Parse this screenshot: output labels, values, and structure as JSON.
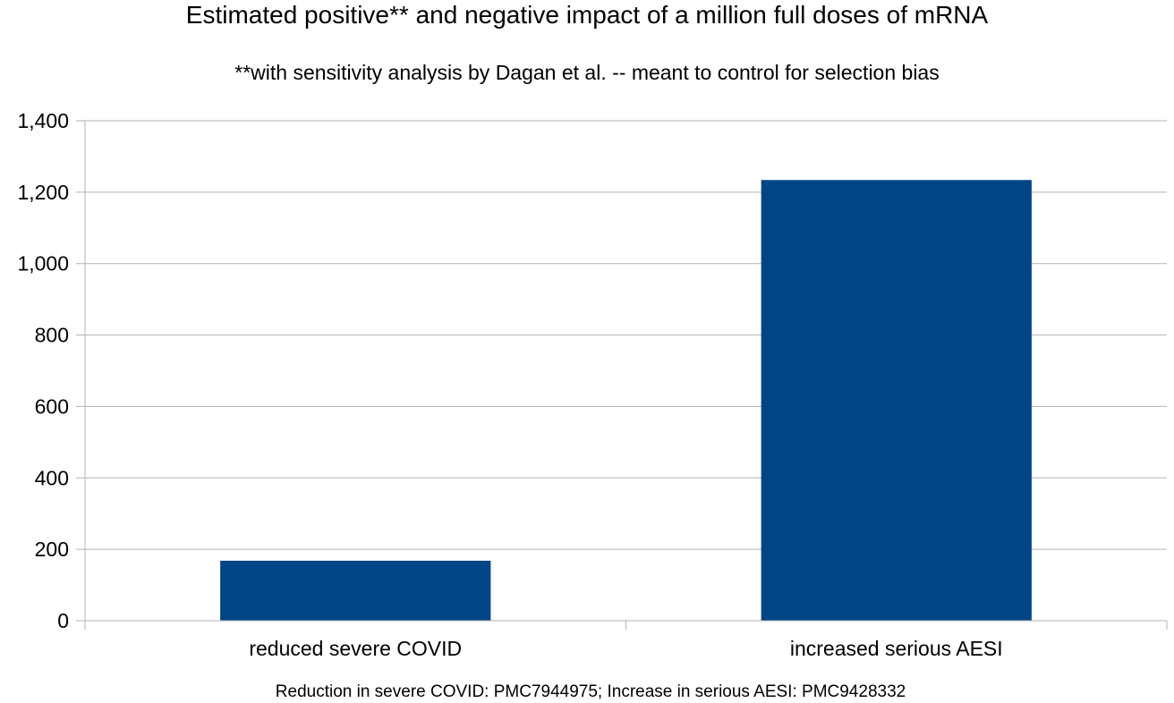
{
  "chart_data": {
    "type": "bar",
    "title": "Estimated positive** and negative impact of a million full doses of mRNA",
    "subtitle": "**with sensitivity analysis by Dagan et al. -- meant to control for selection bias",
    "footnote": "Reduction in severe COVID: PMC7944975; Increase in serious AESI: PMC9428332",
    "categories": [
      "reduced severe COVID",
      "increased serious AESI"
    ],
    "values": [
      168,
      1234
    ],
    "xlabel": "",
    "ylabel": "",
    "ylim": [
      0,
      1400
    ],
    "yticks": [
      0,
      200,
      400,
      600,
      800,
      1000,
      1200,
      1400
    ],
    "ytick_labels": [
      "0",
      "200",
      "400",
      "600",
      "800",
      "1,000",
      "1,200",
      "1,400"
    ],
    "grid": true,
    "legend": "none",
    "bar_color": "#004586",
    "grid_color": "#b3b3b3"
  }
}
